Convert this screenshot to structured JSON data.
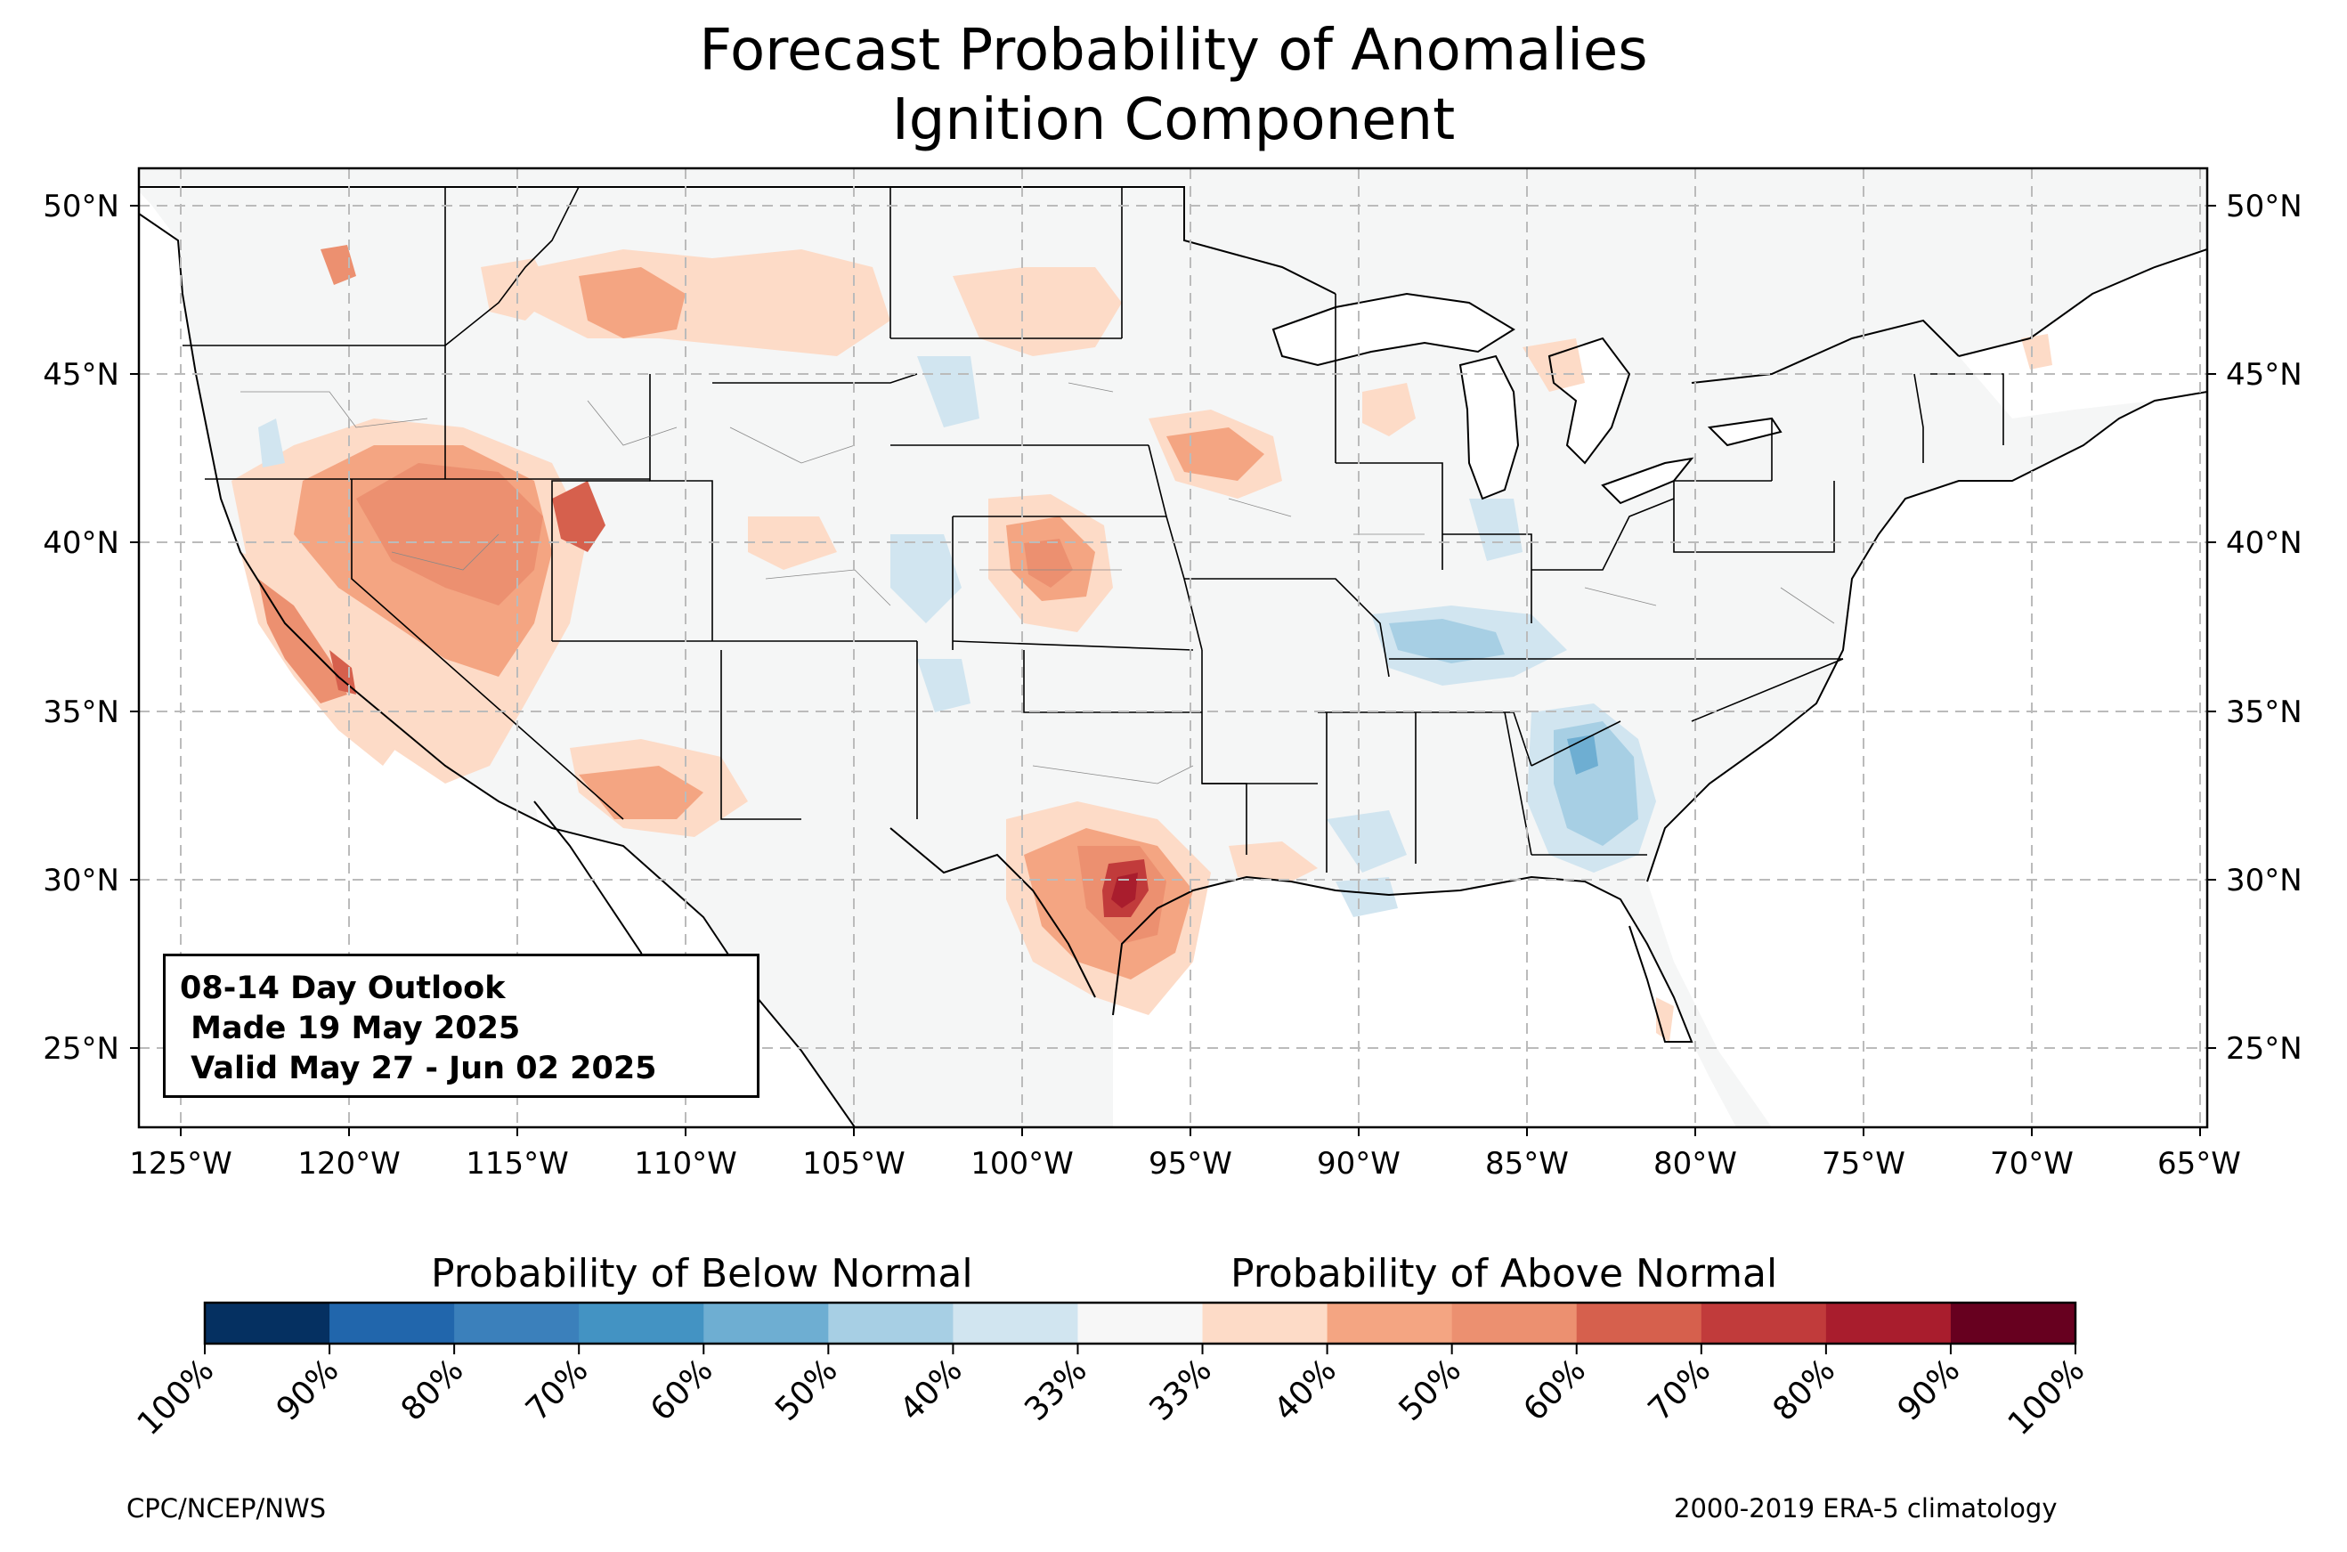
{
  "title": {
    "line1": "Forecast Probability of Anomalies",
    "line2": "Ignition Component"
  },
  "map": {
    "lat_ticks": [
      "50°N",
      "45°N",
      "40°N",
      "35°N",
      "30°N",
      "25°N"
    ],
    "lon_ticks": [
      "125°W",
      "120°W",
      "115°W",
      "110°W",
      "105°W",
      "100°W",
      "95°W",
      "90°W",
      "85°W",
      "80°W",
      "75°W",
      "70°W",
      "65°W"
    ],
    "background_color": "#f5f6f6",
    "anomaly_regions": [
      {
        "region": "Great Basin / Nevada-Utah",
        "category": "above",
        "level": "50%"
      },
      {
        "region": "California interior",
        "category": "above",
        "level": "60%"
      },
      {
        "region": "South-central Texas",
        "category": "above",
        "level": "70%"
      },
      {
        "region": "Central Kansas",
        "category": "above",
        "level": "50%"
      },
      {
        "region": "Northern Rockies / Montana",
        "category": "above",
        "level": "50%"
      },
      {
        "region": "Southern Arizona / New Mexico",
        "category": "above",
        "level": "50%"
      },
      {
        "region": "Georgia / South Carolina",
        "category": "below",
        "level": "50%"
      },
      {
        "region": "Kentucky / Tennessee",
        "category": "below",
        "level": "40%"
      }
    ]
  },
  "outlook": {
    "line1": "08-14 Day Outlook",
    "line2": " Made 19 May 2025",
    "line3": " Valid May 27 - Jun 02 2025"
  },
  "legend": {
    "below_title": "Probability of Below Normal",
    "above_title": "Probability of Above Normal",
    "colors": [
      "#053061",
      "#2166ac",
      "#3b80bb",
      "#4393c3",
      "#6eaed2",
      "#a7cfe4",
      "#d1e5f0",
      "#f7f7f7",
      "#fddbc7",
      "#f4a582",
      "#ec9070",
      "#d6604d",
      "#c13b3b",
      "#a91d2d",
      "#67001f"
    ],
    "tick_labels": [
      "100%",
      "90%",
      "80%",
      "70%",
      "60%",
      "50%",
      "40%",
      "33%",
      "33%",
      "40%",
      "50%",
      "60%",
      "70%",
      "80%",
      "90%",
      "100%"
    ]
  },
  "footer": {
    "left": "CPC/NCEP/NWS",
    "right": "2000-2019 ERA-5 climatology"
  }
}
